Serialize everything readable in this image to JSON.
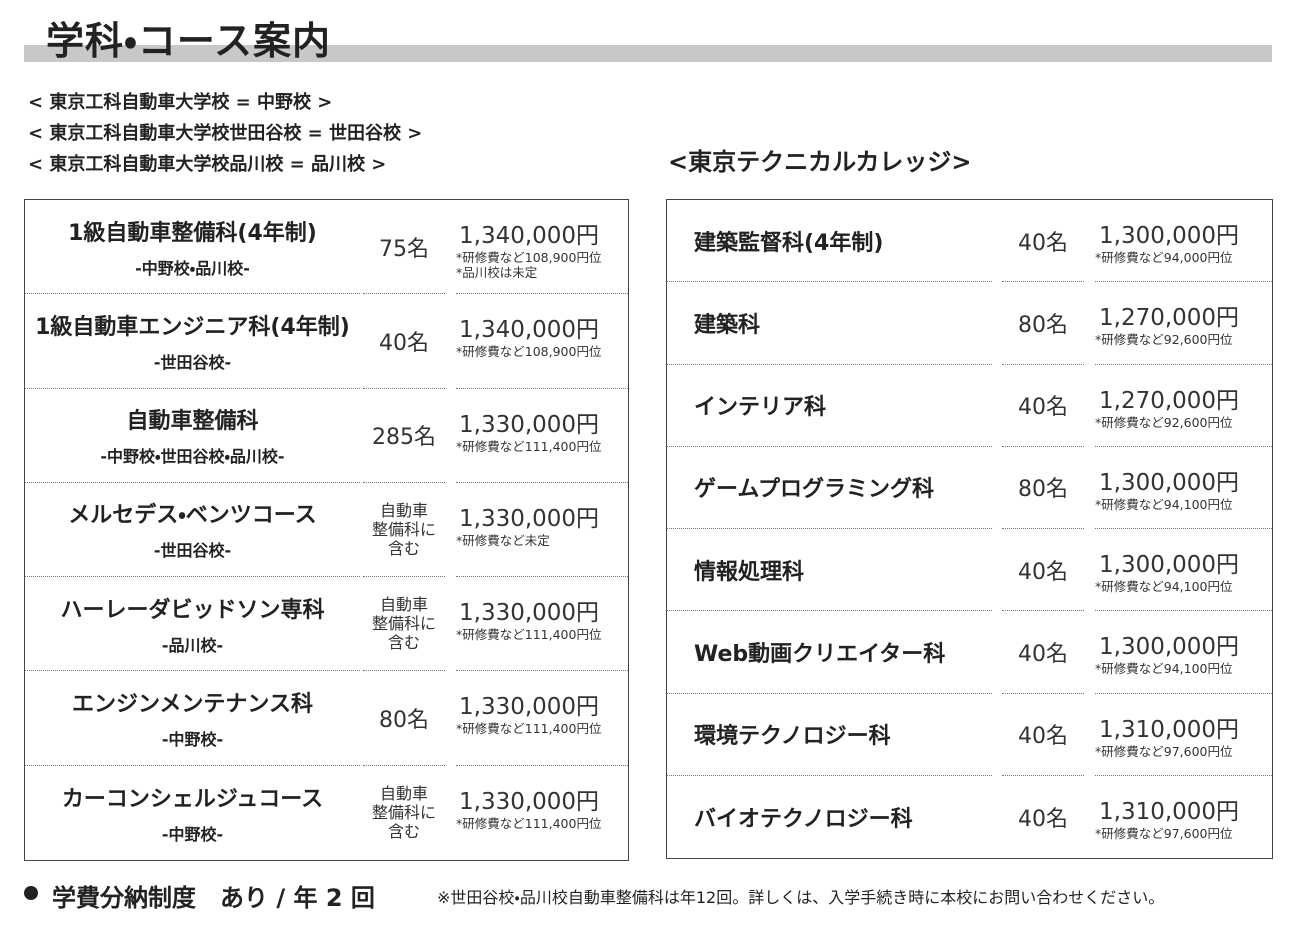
{
  "header": {
    "title": "学科・コース案内"
  },
  "campus_notes": [
    "< 東京工科自動車大学校 = 中野校 >",
    "< 東京工科自動車大学校世田谷校 = 世田谷校 >",
    "< 東京工科自動車大学校品川校 = 品川校 >"
  ],
  "left_table": {
    "rows": [
      {
        "name": "1級自動車整備科(4年制)",
        "campus": "-中野校・品川校-",
        "capacity": [
          "75名"
        ],
        "fee": "1,340,000円",
        "notes": [
          "*研修費など108,900円位",
          "*品川校は未定"
        ]
      },
      {
        "name": "1級自動車エンジニア科(4年制)",
        "campus": "-世田谷校-",
        "capacity": [
          "40名"
        ],
        "fee": "1,340,000円",
        "notes": [
          "*研修費など108,900円位"
        ]
      },
      {
        "name": "自動車整備科",
        "campus": "-中野校・世田谷校・品川校-",
        "capacity": [
          "285名"
        ],
        "fee": "1,330,000円",
        "notes": [
          "*研修費など111,400円位"
        ]
      },
      {
        "name": "メルセデス・ベンツコース",
        "campus": "-世田谷校-",
        "capacity": [
          "自動車",
          "整備科に",
          "含む"
        ],
        "fee": "1,330,000円",
        "notes": [
          "*研修費など未定"
        ]
      },
      {
        "name": "ハーレーダビッドソン専科",
        "campus": "-品川校-",
        "capacity": [
          "自動車",
          "整備科に",
          "含む"
        ],
        "fee": "1,330,000円",
        "notes": [
          "*研修費など111,400円位"
        ]
      },
      {
        "name": "エンジンメンテナンス科",
        "campus": "-中野校-",
        "capacity": [
          "80名"
        ],
        "fee": "1,330,000円",
        "notes": [
          "*研修費など111,400円位"
        ]
      },
      {
        "name": "カーコンシェルジュコース",
        "campus": "-中野校-",
        "capacity": [
          "自動車",
          "整備科に",
          "含む"
        ],
        "fee": "1,330,000円",
        "notes": [
          "*研修費など111,400円位"
        ]
      }
    ]
  },
  "right_table": {
    "heading": "<東京テクニカルカレッジ>",
    "rows": [
      {
        "name": "建築監督科(4年制)",
        "capacity": "40名",
        "fee": "1,300,000円",
        "note": "*研修費など94,000円位"
      },
      {
        "name": "建築科",
        "capacity": "80名",
        "fee": "1,270,000円",
        "note": "*研修費など92,600円位"
      },
      {
        "name": "インテリア科",
        "capacity": "40名",
        "fee": "1,270,000円",
        "note": "*研修費など92,600円位"
      },
      {
        "name": "ゲームプログラミング科",
        "capacity": "80名",
        "fee": "1,300,000円",
        "note": "*研修費など94,100円位"
      },
      {
        "name": "情報処理科",
        "capacity": "40名",
        "fee": "1,300,000円",
        "note": "*研修費など94,100円位"
      },
      {
        "name": "Web動画クリエイター科",
        "capacity": "40名",
        "fee": "1,300,000円",
        "note": "*研修費など94,100円位"
      },
      {
        "name": "環境テクノロジー科",
        "capacity": "40名",
        "fee": "1,310,000円",
        "note": "*研修費など97,600円位"
      },
      {
        "name": "バイオテクノロジー科",
        "capacity": "40名",
        "fee": "1,310,000円",
        "note": "*研修費など97,600円位"
      }
    ]
  },
  "footer": {
    "policy": "学費分納制度　あり / 年 2 回",
    "note": "※世田谷校・品川校自動車整備科は年12回。詳しくは、入学手続き時に本校にお問い合わせください。"
  }
}
